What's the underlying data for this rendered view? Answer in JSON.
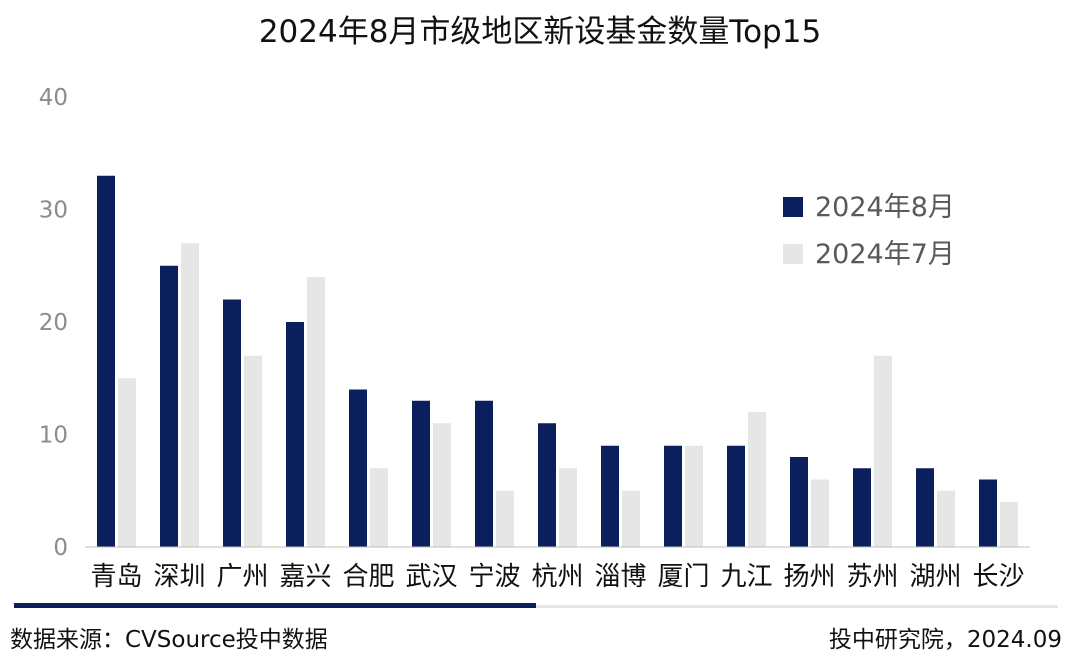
{
  "chart_data": {
    "type": "bar",
    "title": "2024年8月市级地区新设基金数量Top15",
    "categories": [
      "青岛",
      "深圳",
      "广州",
      "嘉兴",
      "合肥",
      "武汉",
      "宁波",
      "杭州",
      "淄博",
      "厦门",
      "九江",
      "扬州",
      "苏州",
      "湖州",
      "长沙"
    ],
    "series": [
      {
        "name": "2024年8月",
        "color": "#0b1f5c",
        "values": [
          33,
          25,
          22,
          20,
          14,
          13,
          13,
          11,
          9,
          9,
          9,
          8,
          7,
          7,
          6
        ]
      },
      {
        "name": "2024年7月",
        "color": "#e6e6e6",
        "values": [
          15,
          27,
          17,
          24,
          7,
          11,
          5,
          7,
          5,
          9,
          12,
          6,
          17,
          5,
          4
        ]
      }
    ],
    "ylim": [
      0,
      40
    ],
    "yticks": [
      0,
      10,
      20,
      30,
      40
    ],
    "legend": "top-right",
    "grid": false
  },
  "footer": {
    "source": "数据来源：CVSource投中数据",
    "publisher": "投中研究院，2024.09"
  }
}
